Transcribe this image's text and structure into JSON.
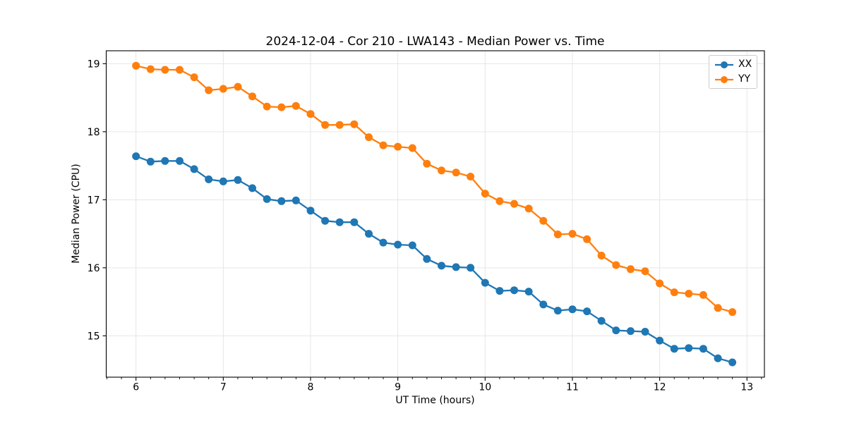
{
  "chart_data": {
    "type": "line",
    "title": "2024-12-04 - Cor 210 - LWA143 - Median Power vs. Time",
    "xlabel": "UT Time (hours)",
    "ylabel": "Median Power (CPU)",
    "xlim": [
      5.659,
      13.2
    ],
    "ylim": [
      14.392,
      19.19
    ],
    "x_ticks": [
      6,
      7,
      8,
      9,
      10,
      11,
      12,
      13
    ],
    "y_ticks": [
      15,
      16,
      17,
      18,
      19
    ],
    "x_minor_step_hours": 0.1667,
    "grid": "major-only",
    "grid_color": "#e6e6e6",
    "legend_position": "upper right",
    "marker": "circle",
    "x": [
      6.0,
      6.167,
      6.333,
      6.5,
      6.667,
      6.833,
      7.0,
      7.167,
      7.333,
      7.5,
      7.667,
      7.833,
      8.0,
      8.167,
      8.333,
      8.5,
      8.667,
      8.833,
      9.0,
      9.167,
      9.333,
      9.5,
      9.667,
      9.833,
      10.0,
      10.167,
      10.333,
      10.5,
      10.667,
      10.833,
      11.0,
      11.167,
      11.333,
      11.5,
      11.667,
      11.833,
      12.0,
      12.167,
      12.333,
      12.5,
      12.667,
      12.833
    ],
    "series": [
      {
        "name": "XX",
        "color": "#1f77b4",
        "values": [
          17.64,
          17.56,
          17.57,
          17.57,
          17.45,
          17.3,
          17.27,
          17.29,
          17.17,
          17.01,
          16.98,
          16.99,
          16.84,
          16.69,
          16.67,
          16.67,
          16.5,
          16.37,
          16.34,
          16.33,
          16.13,
          16.03,
          16.01,
          16.0,
          15.78,
          15.66,
          15.67,
          15.65,
          15.46,
          15.37,
          15.39,
          15.36,
          15.22,
          15.08,
          15.07,
          15.06,
          14.93,
          14.81,
          14.82,
          14.81,
          14.67,
          14.61
        ]
      },
      {
        "name": "YY",
        "color": "#ff7f0e",
        "values": [
          18.97,
          18.92,
          18.91,
          18.91,
          18.8,
          18.61,
          18.63,
          18.66,
          18.52,
          18.37,
          18.36,
          18.38,
          18.26,
          18.1,
          18.1,
          18.11,
          17.92,
          17.8,
          17.78,
          17.76,
          17.53,
          17.43,
          17.4,
          17.34,
          17.09,
          16.98,
          16.94,
          16.87,
          16.69,
          16.49,
          16.5,
          16.42,
          16.18,
          16.04,
          15.98,
          15.95,
          15.77,
          15.64,
          15.62,
          15.6,
          15.41,
          15.35
        ]
      }
    ]
  }
}
